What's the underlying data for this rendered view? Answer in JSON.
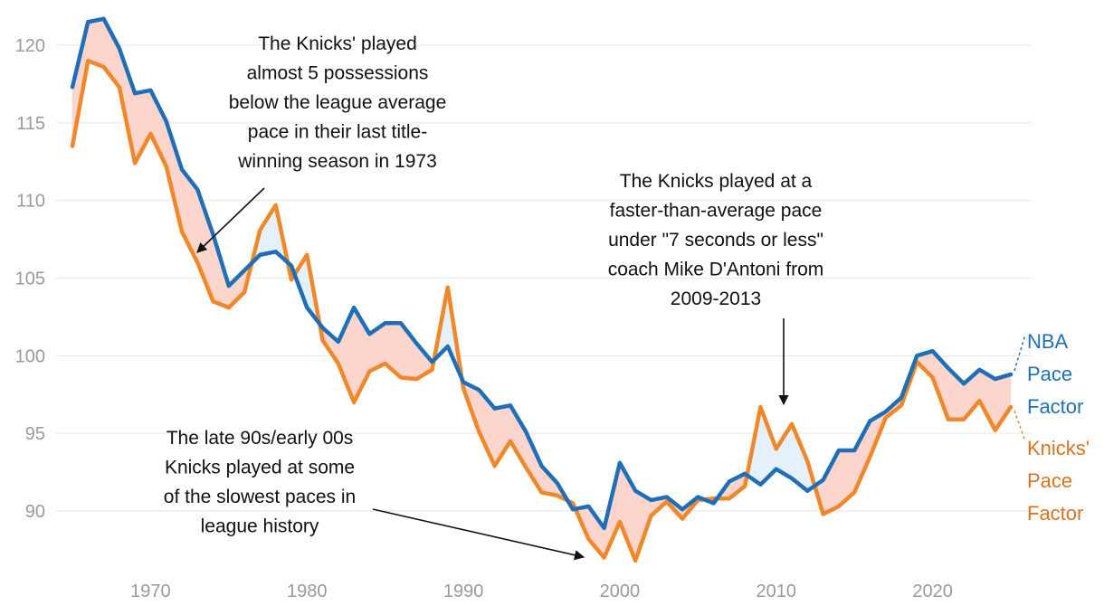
{
  "chart_data": {
    "type": "line",
    "title": "",
    "xlabel": "",
    "ylabel": "",
    "xlim": [
      1965,
      2025
    ],
    "ylim": [
      86.5,
      122
    ],
    "x_ticks": [
      "1970",
      "1980",
      "1990",
      "2000",
      "2010",
      "2020"
    ],
    "y_ticks": [
      "120",
      "115",
      "110",
      "105",
      "100",
      "95",
      "90"
    ],
    "x": [
      1965,
      1966,
      1967,
      1968,
      1969,
      1970,
      1971,
      1972,
      1973,
      1974,
      1975,
      1976,
      1977,
      1978,
      1979,
      1980,
      1981,
      1982,
      1983,
      1984,
      1985,
      1986,
      1987,
      1988,
      1989,
      1990,
      1991,
      1992,
      1993,
      1994,
      1995,
      1996,
      1997,
      1998,
      1999,
      2000,
      2001,
      2002,
      2003,
      2004,
      2005,
      2006,
      2007,
      2008,
      2009,
      2010,
      2011,
      2012,
      2013,
      2014,
      2015,
      2016,
      2017,
      2018,
      2019,
      2020,
      2021,
      2022,
      2023,
      2024,
      2025
    ],
    "series": [
      {
        "name": "NBA Pace Factor",
        "color": "#1f6fb8",
        "values": [
          117.3,
          121.5,
          121.7,
          119.8,
          116.9,
          117.1,
          115.1,
          112.0,
          110.7,
          107.8,
          104.5,
          105.5,
          106.5,
          106.7,
          105.8,
          103.1,
          101.8,
          100.9,
          103.1,
          101.4,
          102.1,
          102.1,
          100.8,
          99.6,
          100.6,
          98.3,
          97.8,
          96.6,
          96.8,
          95.1,
          92.9,
          91.8,
          90.1,
          90.3,
          88.9,
          93.1,
          91.3,
          90.7,
          90.9,
          90.1,
          90.9,
          90.5,
          91.9,
          92.4,
          91.7,
          92.7,
          92.1,
          91.3,
          92.0,
          93.9,
          93.9,
          95.8,
          96.4,
          97.3,
          100.0,
          100.3,
          99.2,
          98.2,
          99.1,
          98.5,
          98.8
        ]
      },
      {
        "name": "Knicks' Pace Factor",
        "color": "#f0882a",
        "values": [
          113.5,
          119.0,
          118.6,
          117.3,
          112.4,
          114.3,
          112.2,
          108.0,
          106.0,
          103.5,
          103.1,
          104.1,
          108.1,
          109.7,
          104.9,
          106.5,
          101.0,
          99.5,
          97.0,
          99.0,
          99.5,
          98.6,
          98.5,
          99.1,
          104.4,
          97.9,
          95.1,
          92.9,
          94.5,
          92.8,
          91.2,
          91.0,
          90.5,
          88.2,
          87.0,
          89.3,
          86.8,
          89.7,
          90.6,
          89.5,
          90.7,
          90.8,
          90.8,
          91.6,
          96.7,
          94.0,
          95.6,
          93.2,
          89.8,
          90.3,
          91.2,
          93.5,
          96.0,
          96.8,
          99.6,
          98.6,
          95.9,
          95.9,
          97.1,
          95.2,
          96.7
        ]
      }
    ],
    "legend": [
      "NBA Pace Factor",
      "Knicks' Pace Factor"
    ],
    "legend_position": "right",
    "fill_colors": {
      "knicks_below": "#fcd5cc",
      "knicks_above": "#e4f1fa"
    },
    "annotations": [
      {
        "lines": [
          "The Knicks' played",
          "almost 5 possessions",
          "below the league average",
          "pace in their last title-",
          "winning season in 1973"
        ],
        "target_year": 1973
      },
      {
        "lines": [
          "The Knicks played at a",
          "faster-than-average pace",
          "under \"7 seconds or less\"",
          "coach Mike D'Antoni from",
          "2009-2013"
        ],
        "target_year": 2010
      },
      {
        "lines": [
          "The late 90s/early 00s",
          "Knicks played at some",
          "of the slowest paces in",
          "league history"
        ],
        "target_year": 1999
      }
    ],
    "legend_labels": {
      "nba": [
        "NBA",
        "Pace",
        "Factor"
      ],
      "knicks": [
        "Knicks'",
        "Pace",
        "Factor"
      ]
    }
  }
}
